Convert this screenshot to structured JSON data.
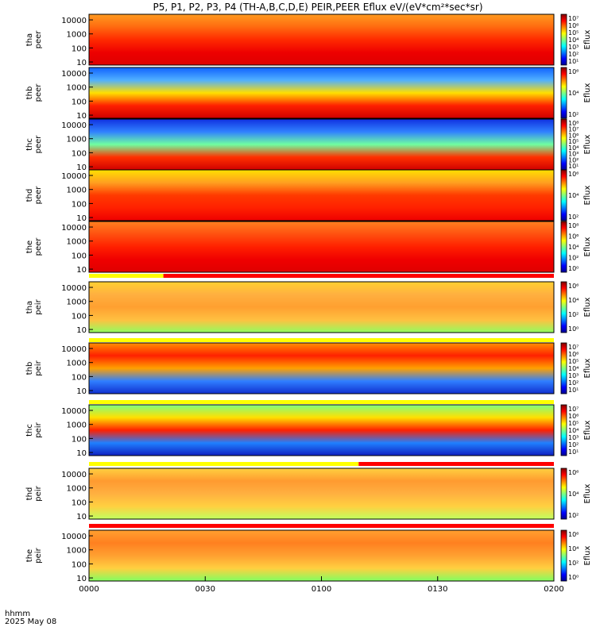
{
  "title": "P5, P1, P2, P3, P4 (TH-A,B,C,D,E) PEIR,PEER Eflux eV/(eV*cm²*sec*sr)",
  "time_labels": {
    "unit": "hhmm",
    "date": "2025 May 08",
    "ticks": [
      "0000",
      "0030",
      "0100",
      "0130",
      "0200"
    ]
  },
  "chart_data": {
    "type": "heatmap",
    "x_range_hours": [
      0,
      2
    ],
    "y_scale": "log",
    "y_range_eV": [
      6,
      25000
    ],
    "y_ticks": [
      "10000",
      "1000",
      "100",
      "10"
    ],
    "colorbar_label": "Eflux",
    "panels": [
      {
        "id": "tha-peer",
        "l1": "tha",
        "l2": "peer",
        "cb_ticks": [
          "10⁷",
          "10⁶",
          "10⁵",
          "10⁴",
          "10³",
          "10²",
          "10¹"
        ]
      },
      {
        "id": "thb-peer",
        "l1": "thb",
        "l2": "peer",
        "cb_ticks": [
          "10⁶",
          "10⁴",
          "10²"
        ]
      },
      {
        "id": "thc-peer",
        "l1": "thc",
        "l2": "peer",
        "cb_ticks": [
          "10⁸",
          "10⁷",
          "10⁶",
          "10⁵",
          "10⁴",
          "10³",
          "10²",
          "10¹"
        ]
      },
      {
        "id": "thd-peer",
        "l1": "thd",
        "l2": "peer",
        "cb_ticks": [
          "10⁶",
          "10⁴",
          "10²"
        ]
      },
      {
        "id": "the-peer",
        "l1": "the",
        "l2": "peer",
        "cb_ticks": [
          "10⁸",
          "10⁶",
          "10⁴",
          "10²",
          "10⁰"
        ]
      },
      {
        "id": "tha-peir",
        "l1": "tha",
        "l2": "peir",
        "cb_ticks": [
          "10⁶",
          "10⁴",
          "10²",
          "10⁰"
        ]
      },
      {
        "id": "thb-peir",
        "l1": "thb",
        "l2": "peir",
        "cb_ticks": [
          "10⁷",
          "10⁶",
          "10⁵",
          "10⁴",
          "10³",
          "10²",
          "10¹"
        ]
      },
      {
        "id": "thc-peir",
        "l1": "thc",
        "l2": "peir",
        "cb_ticks": [
          "10⁷",
          "10⁶",
          "10⁵",
          "10⁴",
          "10³",
          "10²",
          "10¹"
        ]
      },
      {
        "id": "thd-peir",
        "l1": "thd",
        "l2": "peir",
        "cb_ticks": [
          "10⁶",
          "10⁴",
          "10²"
        ]
      },
      {
        "id": "the-peir",
        "l1": "the",
        "l2": "peir",
        "cb_ticks": [
          "10⁶",
          "10⁴",
          "10²",
          "10⁰"
        ]
      }
    ]
  },
  "colors": {
    "jet": [
      "#00008f",
      "#0000ff",
      "#0080ff",
      "#00ffff",
      "#80ff80",
      "#ffff00",
      "#ff8000",
      "#ff0000",
      "#800000"
    ],
    "mode_bar_yellow": "#ffff00",
    "mode_bar_red": "#ff0000"
  }
}
